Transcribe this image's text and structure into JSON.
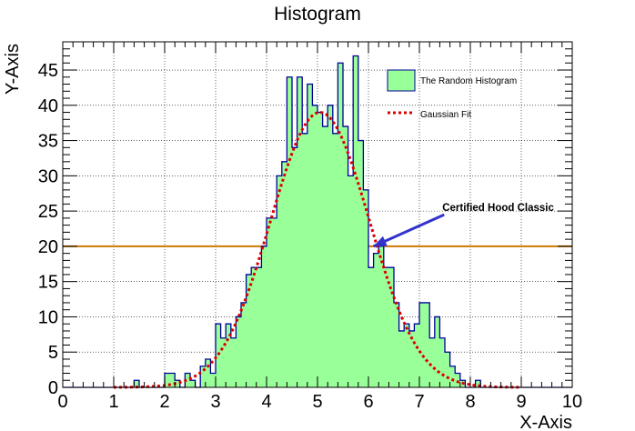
{
  "chart_data": {
    "type": "bar",
    "title": "Histogram",
    "xlabel": "X-Axis",
    "ylabel": "Y-Axis",
    "xlim": [
      0,
      10
    ],
    "ylim": [
      0,
      49
    ],
    "x_ticks": [
      0,
      1,
      2,
      3,
      4,
      5,
      6,
      7,
      8,
      9,
      10
    ],
    "y_ticks": [
      0,
      5,
      10,
      15,
      20,
      25,
      30,
      35,
      40,
      45
    ],
    "grid": true,
    "bin_start": 0,
    "bin_width": 0.1,
    "series": [
      {
        "name": "The Random Histogram",
        "kind": "histogram",
        "fill_color": "#99ff99",
        "line_color": "#000099",
        "values": [
          0,
          0,
          0,
          0,
          0,
          0,
          0,
          0,
          0,
          0,
          0,
          0,
          0,
          0,
          1,
          0,
          0,
          0,
          0,
          0,
          2,
          2,
          1,
          0,
          2,
          1,
          0,
          3,
          4,
          2,
          9,
          7,
          9,
          7,
          10,
          12,
          16,
          17,
          17,
          20,
          24,
          24,
          30,
          32,
          44,
          34,
          44,
          36,
          43,
          40,
          39,
          37,
          40,
          36,
          46,
          37,
          30,
          47,
          35,
          28,
          17,
          19,
          20,
          17,
          17,
          12,
          8,
          9,
          8,
          9,
          12,
          12,
          7,
          10,
          7,
          5,
          3,
          2,
          1,
          0,
          0,
          1,
          0,
          0,
          0,
          0,
          0,
          0,
          0,
          0,
          0,
          0,
          0,
          0,
          0,
          0,
          0,
          0,
          0,
          0
        ]
      },
      {
        "name": "Gaussian Fit",
        "kind": "function",
        "function": "gaussian",
        "amplitude": 39,
        "mean": 5.05,
        "sigma": 0.97,
        "range": [
          1,
          9
        ],
        "line_color": "#dd0000",
        "line_style": "dotted"
      }
    ],
    "reference_line": {
      "y": 20,
      "color": "#cc7a00"
    },
    "annotations": [
      {
        "text": "Certified Hood Classic",
        "text_at": [
          7.45,
          25
        ],
        "arrow_to": [
          6.1,
          20
        ],
        "arrow_color": "#3333cc"
      }
    ],
    "legend": {
      "placement": "top-right",
      "entries": [
        "The Random Histogram",
        "Gaussian Fit"
      ]
    }
  }
}
